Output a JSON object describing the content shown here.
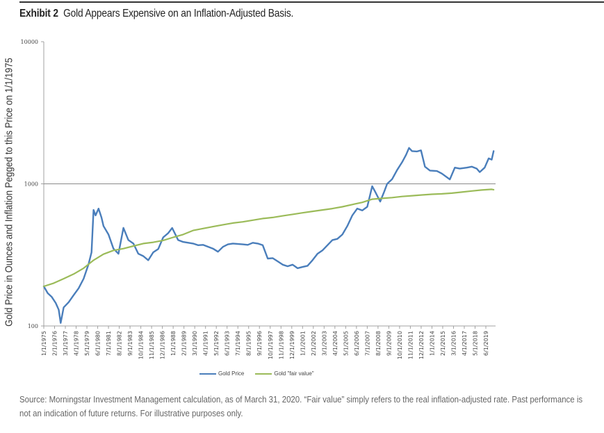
{
  "exhibit_label": "Exhibit 2",
  "title": "Gold Appears Expensive on an Inflation-Adjusted Basis.",
  "footer": "Source: Morningstar Investment Management calculation, as of March 31, 2020. “Fair value” simply refers to the real inflation-adjusted rate. Past performance is not an indication of future returns. For illustrative purposes only.",
  "chart_data": {
    "type": "line",
    "title": "Gold Appears Expensive on an Inflation-Adjusted Basis.",
    "xlabel": "",
    "ylabel": "Gold Price in Ounces and Inflation Pegged to this Price on 1/1/1975",
    "yscale": "log",
    "ylim": [
      100,
      10000
    ],
    "xlim": [
      1975.0,
      2020.25
    ],
    "grid": false,
    "reference_line": 1000,
    "yticks": [
      "100",
      "1000",
      "10000"
    ],
    "ytick_values": [
      100,
      1000,
      10000
    ],
    "xticks": [
      "1/1/1975",
      "2/1/1976",
      "3/1/1977",
      "4/1/1978",
      "5/1/1979",
      "6/1/1980",
      "7/1/1981",
      "8/1/1982",
      "9/1/1983",
      "10/1/1984",
      "11/1/1985",
      "12/1/1986",
      "1/1/1988",
      "2/1/1989",
      "3/1/1990",
      "4/1/1991",
      "5/1/1992",
      "6/1/1993",
      "7/1/1994",
      "8/1/1995",
      "9/1/1996",
      "10/1/1997",
      "11/1/1998",
      "12/1/1999",
      "1/1/2001",
      "2/1/2002",
      "3/1/2003",
      "4/1/2004",
      "5/1/2005",
      "6/1/2006",
      "7/1/2007",
      "8/1/2008",
      "9/1/2009",
      "10/1/2010",
      "11/1/2011",
      "12/1/2012",
      "1/1/2014",
      "2/1/2015",
      "3/1/2016",
      "4/1/2017",
      "5/1/2018",
      "6/1/2019"
    ],
    "legend_position": "bottom",
    "series": [
      {
        "name": "Gold Price",
        "color": "#4a7ebb",
        "x": [
          1975.0,
          1975.4,
          1975.8,
          1976.2,
          1976.5,
          1976.7,
          1977.0,
          1977.5,
          1978.0,
          1978.5,
          1979.0,
          1979.5,
          1979.8,
          1980.0,
          1980.2,
          1980.5,
          1980.8,
          1981.0,
          1981.5,
          1982.0,
          1982.5,
          1983.0,
          1983.5,
          1984.0,
          1984.5,
          1985.0,
          1985.5,
          1986.0,
          1986.5,
          1987.0,
          1987.5,
          1987.9,
          1988.5,
          1989.0,
          1990.0,
          1990.5,
          1991.0,
          1992.0,
          1992.5,
          1993.0,
          1993.5,
          1994.0,
          1995.0,
          1995.5,
          1996.0,
          1996.5,
          1997.0,
          1997.5,
          1998.0,
          1998.5,
          1999.0,
          1999.5,
          2000.0,
          2000.5,
          2001.0,
          2001.5,
          2002.0,
          2002.5,
          2003.0,
          2003.5,
          2004.0,
          2004.5,
          2005.0,
          2005.5,
          2006.0,
          2006.5,
          2007.0,
          2007.5,
          2008.0,
          2008.3,
          2008.8,
          2009.2,
          2009.5,
          2010.0,
          2010.5,
          2011.0,
          2011.4,
          2011.7,
          2012.0,
          2012.5,
          2012.9,
          2013.3,
          2013.8,
          2014.5,
          2015.0,
          2015.8,
          2016.3,
          2016.8,
          2017.5,
          2018.0,
          2018.5,
          2018.8,
          2019.3,
          2019.7,
          2020.0,
          2020.2
        ],
        "values": [
          190,
          170,
          160,
          145,
          130,
          105,
          135,
          147,
          165,
          184,
          215,
          272,
          330,
          655,
          600,
          670,
          580,
          505,
          440,
          350,
          322,
          490,
          402,
          380,
          322,
          310,
          290,
          330,
          348,
          420,
          450,
          489,
          402,
          390,
          380,
          370,
          372,
          350,
          333,
          360,
          375,
          380,
          375,
          372,
          385,
          380,
          370,
          298,
          300,
          285,
          270,
          263,
          270,
          255,
          260,
          265,
          290,
          322,
          340,
          370,
          402,
          410,
          440,
          505,
          600,
          670,
          650,
          690,
          962,
          880,
          750,
          880,
          1000,
          1080,
          1250,
          1420,
          1600,
          1790,
          1700,
          1690,
          1720,
          1320,
          1240,
          1230,
          1180,
          1075,
          1300,
          1280,
          1300,
          1320,
          1280,
          1210,
          1300,
          1510,
          1480,
          1700
        ]
      },
      {
        "name": "Gold \"fair value\"",
        "color": "#9bbb59",
        "x": [
          1975.0,
          1976.0,
          1977.0,
          1978.0,
          1979.0,
          1980.0,
          1981.0,
          1982.0,
          1983.0,
          1984.0,
          1985.0,
          1986.0,
          1987.0,
          1988.0,
          1989.0,
          1990.0,
          1991.0,
          1992.0,
          1993.0,
          1994.0,
          1995.0,
          1996.0,
          1997.0,
          1998.0,
          1999.0,
          2000.0,
          2001.0,
          2002.0,
          2003.0,
          2004.0,
          2005.0,
          2006.0,
          2007.0,
          2008.0,
          2009.0,
          2010.0,
          2011.0,
          2012.0,
          2013.0,
          2014.0,
          2015.0,
          2016.0,
          2017.0,
          2018.0,
          2019.0,
          2020.0,
          2020.2
        ],
        "values": [
          190,
          200,
          215,
          232,
          255,
          290,
          320,
          340,
          350,
          365,
          380,
          388,
          400,
          420,
          440,
          470,
          485,
          500,
          515,
          530,
          540,
          555,
          570,
          580,
          595,
          610,
          625,
          640,
          655,
          670,
          690,
          715,
          740,
          780,
          790,
          800,
          815,
          825,
          835,
          845,
          850,
          860,
          875,
          890,
          905,
          915,
          910
        ]
      }
    ]
  },
  "legend": [
    {
      "label": "Gold Price",
      "color": "#4a7ebb"
    },
    {
      "label": "Gold \"fair value\"",
      "color": "#9bbb59"
    }
  ]
}
